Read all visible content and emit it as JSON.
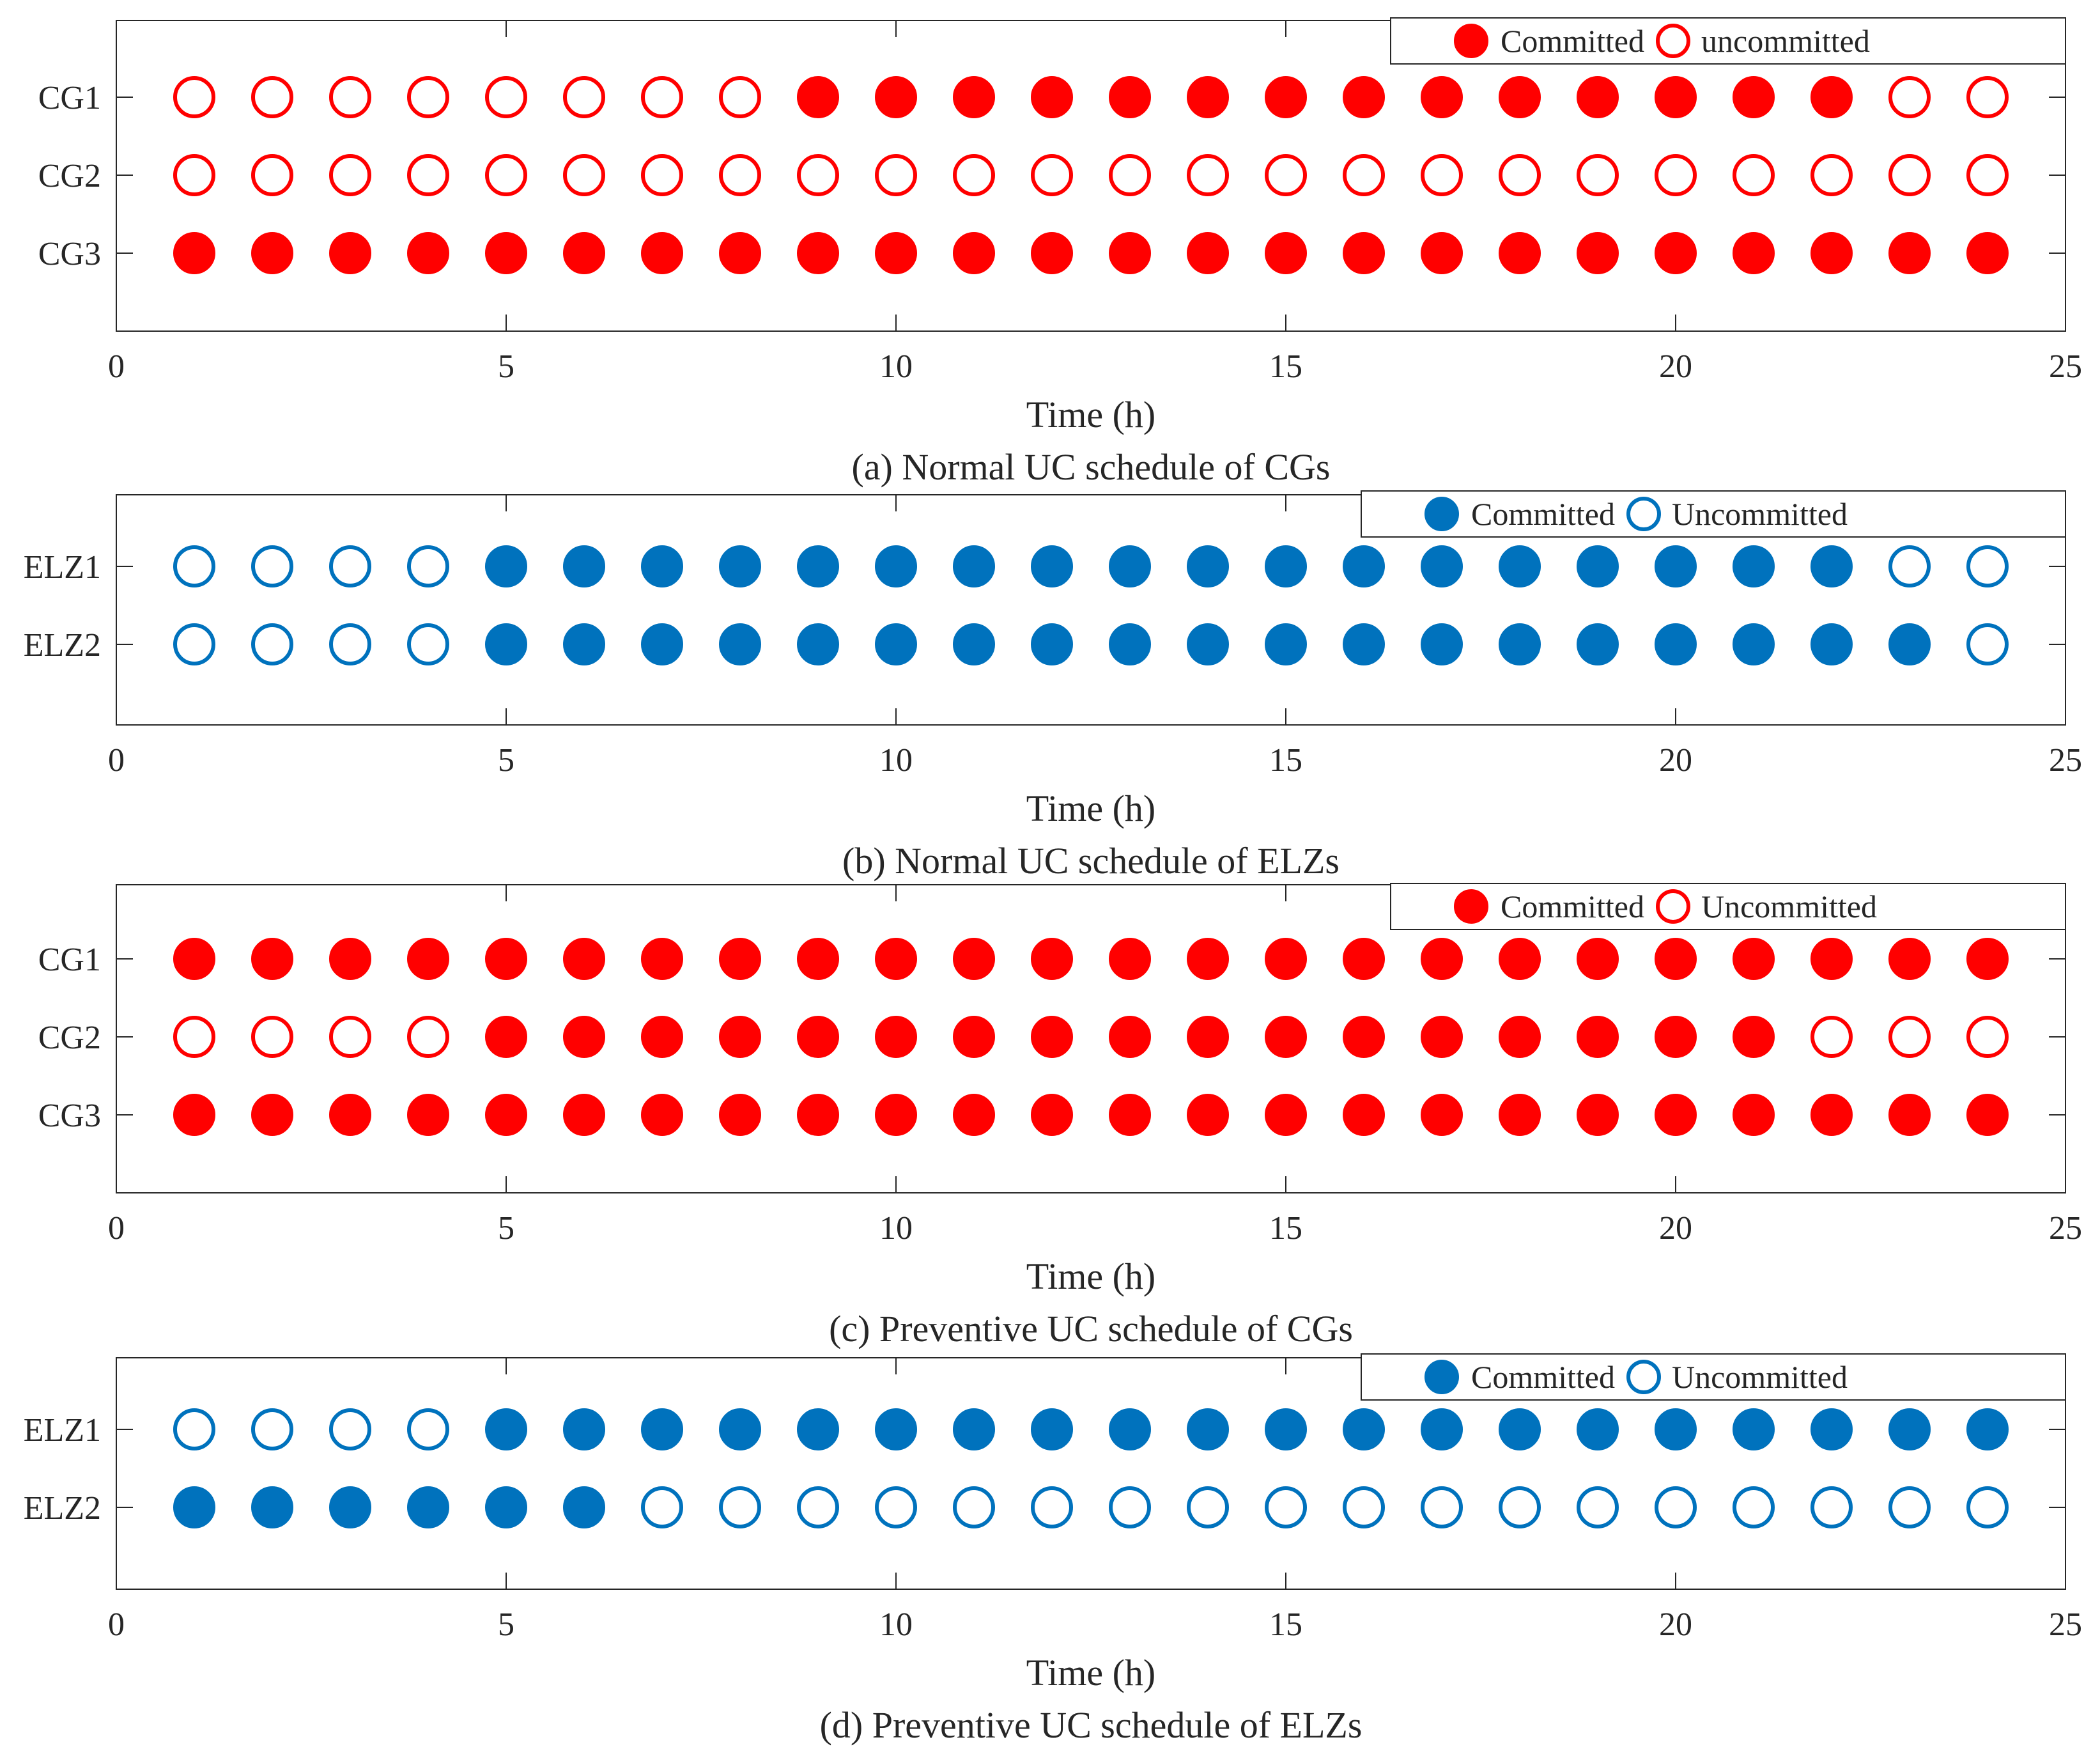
{
  "figure": {
    "panels": [
      {
        "id": "a",
        "caption": "(a) Normal UC schedule of CGs",
        "xlabel": "Time (h)",
        "xlim": [
          0,
          25
        ],
        "xticks": [
          "0",
          "5",
          "10",
          "15",
          "20",
          "25"
        ],
        "color": "#ff0000",
        "legend": {
          "committed": "Committed",
          "uncommitted": "uncommitted"
        },
        "rows": [
          {
            "label": "CG1",
            "status": [
              0,
              0,
              0,
              0,
              0,
              0,
              0,
              0,
              1,
              1,
              1,
              1,
              1,
              1,
              1,
              1,
              1,
              1,
              1,
              1,
              1,
              1,
              0,
              0
            ]
          },
          {
            "label": "CG2",
            "status": [
              0,
              0,
              0,
              0,
              0,
              0,
              0,
              0,
              0,
              0,
              0,
              0,
              0,
              0,
              0,
              0,
              0,
              0,
              0,
              0,
              0,
              0,
              0,
              0
            ]
          },
          {
            "label": "CG3",
            "status": [
              1,
              1,
              1,
              1,
              1,
              1,
              1,
              1,
              1,
              1,
              1,
              1,
              1,
              1,
              1,
              1,
              1,
              1,
              1,
              1,
              1,
              1,
              1,
              1
            ]
          }
        ]
      },
      {
        "id": "b",
        "caption": "(b) Normal UC schedule of ELZs",
        "xlabel": "Time (h)",
        "xlim": [
          0,
          25
        ],
        "xticks": [
          "0",
          "5",
          "10",
          "15",
          "20",
          "25"
        ],
        "color": "#0072bd",
        "legend": {
          "committed": "Committed",
          "uncommitted": "Uncommitted"
        },
        "rows": [
          {
            "label": "ELZ1",
            "status": [
              0,
              0,
              0,
              0,
              1,
              1,
              1,
              1,
              1,
              1,
              1,
              1,
              1,
              1,
              1,
              1,
              1,
              1,
              1,
              1,
              1,
              1,
              0,
              0
            ]
          },
          {
            "label": "ELZ2",
            "status": [
              0,
              0,
              0,
              0,
              1,
              1,
              1,
              1,
              1,
              1,
              1,
              1,
              1,
              1,
              1,
              1,
              1,
              1,
              1,
              1,
              1,
              1,
              1,
              0
            ]
          }
        ]
      },
      {
        "id": "c",
        "caption": "(c) Preventive UC schedule of CGs",
        "xlabel": "Time (h)",
        "xlim": [
          0,
          25
        ],
        "xticks": [
          "0",
          "5",
          "10",
          "15",
          "20",
          "25"
        ],
        "color": "#ff0000",
        "legend": {
          "committed": "Committed",
          "uncommitted": "Uncommitted"
        },
        "rows": [
          {
            "label": "CG1",
            "status": [
              1,
              1,
              1,
              1,
              1,
              1,
              1,
              1,
              1,
              1,
              1,
              1,
              1,
              1,
              1,
              1,
              1,
              1,
              1,
              1,
              1,
              1,
              1,
              1
            ]
          },
          {
            "label": "CG2",
            "status": [
              0,
              0,
              0,
              0,
              1,
              1,
              1,
              1,
              1,
              1,
              1,
              1,
              1,
              1,
              1,
              1,
              1,
              1,
              1,
              1,
              1,
              0,
              0,
              0
            ]
          },
          {
            "label": "CG3",
            "status": [
              1,
              1,
              1,
              1,
              1,
              1,
              1,
              1,
              1,
              1,
              1,
              1,
              1,
              1,
              1,
              1,
              1,
              1,
              1,
              1,
              1,
              1,
              1,
              1
            ]
          }
        ]
      },
      {
        "id": "d",
        "caption": "(d) Preventive UC schedule of ELZs",
        "xlabel": "Time (h)",
        "xlim": [
          0,
          25
        ],
        "xticks": [
          "0",
          "5",
          "10",
          "15",
          "20",
          "25"
        ],
        "color": "#0072bd",
        "legend": {
          "committed": "Committed",
          "uncommitted": "Uncommitted"
        },
        "rows": [
          {
            "label": "ELZ1",
            "status": [
              0,
              0,
              0,
              0,
              1,
              1,
              1,
              1,
              1,
              1,
              1,
              1,
              1,
              1,
              1,
              1,
              1,
              1,
              1,
              1,
              1,
              1,
              1,
              1
            ]
          },
          {
            "label": "ELZ2",
            "status": [
              1,
              1,
              1,
              1,
              1,
              1,
              0,
              0,
              0,
              0,
              0,
              0,
              0,
              0,
              0,
              0,
              0,
              0,
              0,
              0,
              0,
              0,
              0,
              0
            ]
          }
        ]
      }
    ]
  },
  "chart_data": [
    {
      "type": "scatter",
      "title": "(a) Normal UC schedule of CGs",
      "xlabel": "Time (h)",
      "ylabel": "",
      "xlim": [
        0,
        25
      ],
      "x": [
        1,
        2,
        3,
        4,
        5,
        6,
        7,
        8,
        9,
        10,
        11,
        12,
        13,
        14,
        15,
        16,
        17,
        18,
        19,
        20,
        21,
        22,
        23,
        24
      ],
      "legend": [
        "Committed",
        "uncommitted"
      ],
      "series": [
        {
          "name": "CG1",
          "values": [
            0,
            0,
            0,
            0,
            0,
            0,
            0,
            0,
            1,
            1,
            1,
            1,
            1,
            1,
            1,
            1,
            1,
            1,
            1,
            1,
            1,
            1,
            0,
            0
          ]
        },
        {
          "name": "CG2",
          "values": [
            0,
            0,
            0,
            0,
            0,
            0,
            0,
            0,
            0,
            0,
            0,
            0,
            0,
            0,
            0,
            0,
            0,
            0,
            0,
            0,
            0,
            0,
            0,
            0
          ]
        },
        {
          "name": "CG3",
          "values": [
            1,
            1,
            1,
            1,
            1,
            1,
            1,
            1,
            1,
            1,
            1,
            1,
            1,
            1,
            1,
            1,
            1,
            1,
            1,
            1,
            1,
            1,
            1,
            1
          ]
        }
      ]
    },
    {
      "type": "scatter",
      "title": "(b) Normal UC schedule of ELZs",
      "xlabel": "Time (h)",
      "ylabel": "",
      "xlim": [
        0,
        25
      ],
      "x": [
        1,
        2,
        3,
        4,
        5,
        6,
        7,
        8,
        9,
        10,
        11,
        12,
        13,
        14,
        15,
        16,
        17,
        18,
        19,
        20,
        21,
        22,
        23,
        24
      ],
      "legend": [
        "Committed",
        "Uncommitted"
      ],
      "series": [
        {
          "name": "ELZ1",
          "values": [
            0,
            0,
            0,
            0,
            1,
            1,
            1,
            1,
            1,
            1,
            1,
            1,
            1,
            1,
            1,
            1,
            1,
            1,
            1,
            1,
            1,
            1,
            0,
            0
          ]
        },
        {
          "name": "ELZ2",
          "values": [
            0,
            0,
            0,
            0,
            1,
            1,
            1,
            1,
            1,
            1,
            1,
            1,
            1,
            1,
            1,
            1,
            1,
            1,
            1,
            1,
            1,
            1,
            1,
            0
          ]
        }
      ]
    },
    {
      "type": "scatter",
      "title": "(c) Preventive UC schedule of CGs",
      "xlabel": "Time (h)",
      "ylabel": "",
      "xlim": [
        0,
        25
      ],
      "x": [
        1,
        2,
        3,
        4,
        5,
        6,
        7,
        8,
        9,
        10,
        11,
        12,
        13,
        14,
        15,
        16,
        17,
        18,
        19,
        20,
        21,
        22,
        23,
        24
      ],
      "legend": [
        "Committed",
        "Uncommitted"
      ],
      "series": [
        {
          "name": "CG1",
          "values": [
            1,
            1,
            1,
            1,
            1,
            1,
            1,
            1,
            1,
            1,
            1,
            1,
            1,
            1,
            1,
            1,
            1,
            1,
            1,
            1,
            1,
            1,
            1,
            1
          ]
        },
        {
          "name": "CG2",
          "values": [
            0,
            0,
            0,
            0,
            1,
            1,
            1,
            1,
            1,
            1,
            1,
            1,
            1,
            1,
            1,
            1,
            1,
            1,
            1,
            1,
            1,
            0,
            0,
            0
          ]
        },
        {
          "name": "CG3",
          "values": [
            1,
            1,
            1,
            1,
            1,
            1,
            1,
            1,
            1,
            1,
            1,
            1,
            1,
            1,
            1,
            1,
            1,
            1,
            1,
            1,
            1,
            1,
            1,
            1
          ]
        }
      ]
    },
    {
      "type": "scatter",
      "title": "(d) Preventive UC schedule of ELZs",
      "xlabel": "Time (h)",
      "ylabel": "",
      "xlim": [
        0,
        25
      ],
      "x": [
        1,
        2,
        3,
        4,
        5,
        6,
        7,
        8,
        9,
        10,
        11,
        12,
        13,
        14,
        15,
        16,
        17,
        18,
        19,
        20,
        21,
        22,
        23,
        24
      ],
      "legend": [
        "Committed",
        "Uncommitted"
      ],
      "series": [
        {
          "name": "ELZ1",
          "values": [
            0,
            0,
            0,
            0,
            1,
            1,
            1,
            1,
            1,
            1,
            1,
            1,
            1,
            1,
            1,
            1,
            1,
            1,
            1,
            1,
            1,
            1,
            1,
            1
          ]
        },
        {
          "name": "ELZ2",
          "values": [
            1,
            1,
            1,
            1,
            1,
            1,
            0,
            0,
            0,
            0,
            0,
            0,
            0,
            0,
            0,
            0,
            0,
            0,
            0,
            0,
            0,
            0,
            0,
            0
          ]
        }
      ]
    }
  ]
}
